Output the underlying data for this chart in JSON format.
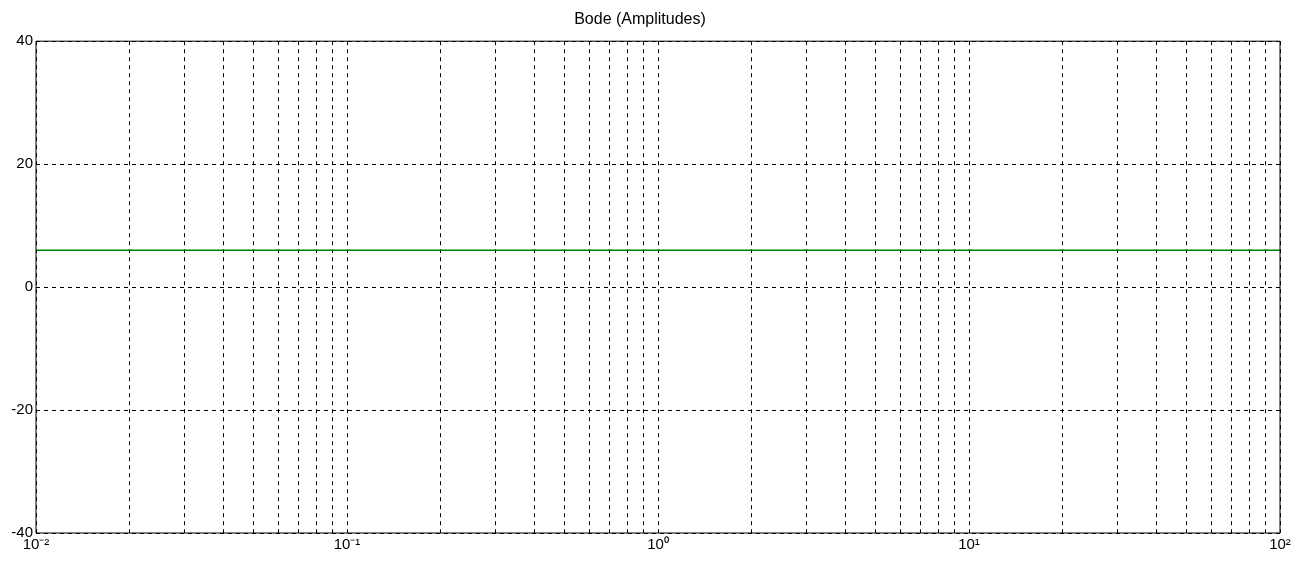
{
  "chart_data": {
    "type": "line",
    "title": "Bode (Amplitudes)",
    "x": [
      0.01,
      100
    ],
    "series": [
      {
        "color": "#008000",
        "values": [
          6,
          6
        ]
      }
    ],
    "log": "x",
    "xlim": [
      0.01,
      100
    ],
    "xticks": [
      {
        "value": 0.01,
        "label": "10⁻²"
      },
      {
        "value": 0.02,
        "label": null
      },
      {
        "value": 0.03,
        "label": null
      },
      {
        "value": 0.04,
        "label": null
      },
      {
        "value": 0.05,
        "label": null
      },
      {
        "value": 0.06,
        "label": null
      },
      {
        "value": 0.07,
        "label": null
      },
      {
        "value": 0.08,
        "label": null
      },
      {
        "value": 0.09,
        "label": null
      },
      {
        "value": 0.1,
        "label": "10⁻¹"
      },
      {
        "value": 0.2,
        "label": null
      },
      {
        "value": 0.3,
        "label": null
      },
      {
        "value": 0.4,
        "label": null
      },
      {
        "value": 0.5,
        "label": null
      },
      {
        "value": 0.6,
        "label": null
      },
      {
        "value": 0.7,
        "label": null
      },
      {
        "value": 0.8,
        "label": null
      },
      {
        "value": 0.9,
        "label": null
      },
      {
        "value": 1,
        "label": "10⁰"
      },
      {
        "value": 2,
        "label": null
      },
      {
        "value": 3,
        "label": null
      },
      {
        "value": 4,
        "label": null
      },
      {
        "value": 5,
        "label": null
      },
      {
        "value": 6,
        "label": null
      },
      {
        "value": 7,
        "label": null
      },
      {
        "value": 8,
        "label": null
      },
      {
        "value": 9,
        "label": null
      },
      {
        "value": 10,
        "label": "10¹"
      },
      {
        "value": 20,
        "label": null
      },
      {
        "value": 30,
        "label": null
      },
      {
        "value": 40,
        "label": null
      },
      {
        "value": 50,
        "label": null
      },
      {
        "value": 60,
        "label": null
      },
      {
        "value": 70,
        "label": null
      },
      {
        "value": 80,
        "label": null
      },
      {
        "value": 90,
        "label": null
      },
      {
        "value": 100,
        "label": "10²"
      }
    ],
    "ylim": [
      -40,
      40
    ],
    "yticks": [
      -40,
      -20,
      0,
      20,
      40
    ],
    "grid": true,
    "line_style": "solid",
    "marker": "none",
    "legend": false
  }
}
